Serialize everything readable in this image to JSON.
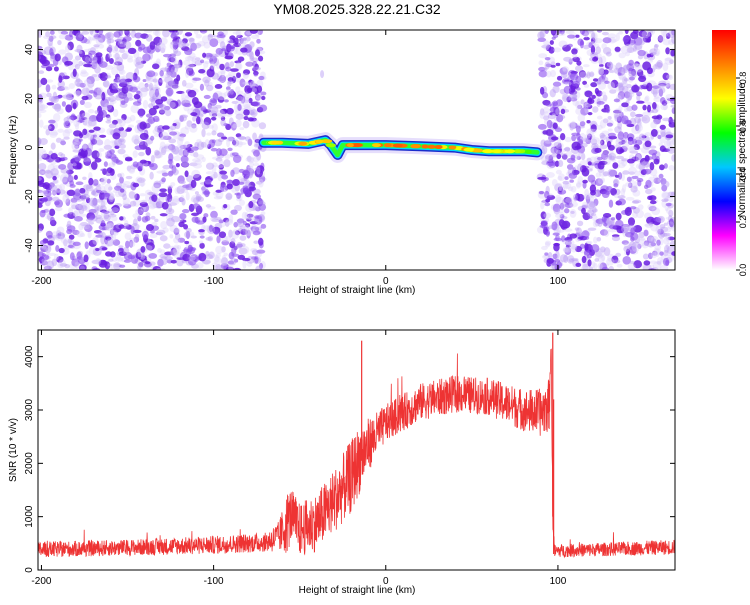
{
  "figure": {
    "title": "YM08.2025.328.22.21.C32"
  },
  "chart_data": [
    {
      "type": "heatmap",
      "title": "YM08.2025.328.22.21.C32",
      "xlabel": "Height of straight line (km)",
      "ylabel": "Frequency (Hz)",
      "xlim": [
        -202,
        168
      ],
      "ylim": [
        -50,
        48
      ],
      "xticks": [
        -200,
        -100,
        0,
        100
      ],
      "yticks": [
        -40,
        -20,
        0,
        20,
        40
      ],
      "colorbar": {
        "label": "Normalized spectral amplitude",
        "range": [
          0,
          1
        ],
        "ticks": [
          0.0,
          0.2,
          0.4,
          0.6,
          0.8
        ],
        "colormap": [
          "#ffffff",
          "#ff00ff",
          "#0000ff",
          "#00c8ff",
          "#00ff00",
          "#ffff00",
          "#ff8000",
          "#ff0000"
        ]
      },
      "noise_regions": [
        {
          "x_range": [
            -202,
            -71
          ],
          "freq_range": [
            -50,
            48
          ],
          "amplitude": 0.2
        },
        {
          "x_range": [
            90,
            168
          ],
          "freq_range": [
            -50,
            48
          ],
          "amplitude": 0.2
        }
      ],
      "signal_track": {
        "x": [
          -71,
          -60,
          -45,
          -35,
          -32,
          -28,
          -25,
          -18,
          0,
          20,
          40,
          50,
          60,
          80,
          88
        ],
        "frequency": [
          2,
          2,
          1.5,
          3,
          1,
          -3,
          1,
          1,
          1,
          0.5,
          0,
          -1,
          -1.5,
          -1.5,
          -2
        ],
        "amplitude": [
          0.6,
          0.8,
          0.8,
          0.9,
          0.7,
          0.6,
          0.8,
          0.9,
          0.9,
          0.9,
          0.8,
          0.8,
          0.8,
          0.7,
          0.5
        ]
      },
      "grid": false,
      "legend": "colorbar-right"
    },
    {
      "type": "line",
      "xlabel": "Height of straight line (km)",
      "ylabel": "SNR (10 * v/v)",
      "xlim": [
        -202,
        168
      ],
      "ylim": [
        0,
        4500
      ],
      "xticks": [
        -200,
        -100,
        0,
        100
      ],
      "yticks": [
        0,
        1000,
        2000,
        3000,
        4000
      ],
      "line_color": "#ee3333",
      "series": [
        {
          "x": [
            -202,
            -150,
            -100,
            -70,
            -62,
            -57,
            -55,
            -50,
            -40,
            -30,
            -20,
            -15,
            -10,
            0,
            20,
            40,
            60,
            80,
            90,
            95,
            96,
            97,
            98,
            100,
            130,
            168
          ],
          "values": [
            380,
            420,
            470,
            520,
            620,
            900,
            1050,
            750,
            900,
            1300,
            1750,
            2100,
            2350,
            2750,
            3150,
            3300,
            3250,
            3000,
            2950,
            3100,
            4400,
            1000,
            350,
            360,
            390,
            430
          ],
          "noise_amplitude": [
            150,
            150,
            170,
            180,
            300,
            600,
            500,
            500,
            550,
            600,
            700,
            650,
            500,
            350,
            350,
            350,
            350,
            400,
            450,
            500,
            300,
            200,
            120,
            120,
            130,
            140
          ]
        }
      ],
      "spikes": [
        {
          "x": -14,
          "y": 4300
        },
        {
          "x": 97,
          "y": 4450
        }
      ],
      "grid": false,
      "legend": "none"
    }
  ]
}
